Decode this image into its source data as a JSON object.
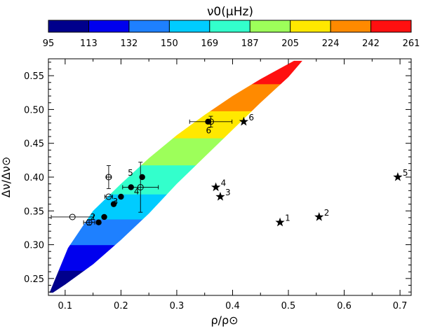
{
  "chart_data": {
    "type": "scatter",
    "xlabel": "ρ/ρ⊙",
    "ylabel": "Δν/Δν⊙",
    "xlim": [
      0.07,
      0.72
    ],
    "ylim": [
      0.225,
      0.575
    ],
    "xticks": [
      0.1,
      0.2,
      0.3,
      0.4,
      0.5,
      0.6,
      0.7
    ],
    "xtick_labels": [
      "0.1",
      "0.2",
      "0.3",
      "0.4",
      "0.5",
      "0.6",
      "0.7"
    ],
    "yticks": [
      0.25,
      0.3,
      0.35,
      0.4,
      0.45,
      0.5,
      0.55
    ],
    "ytick_labels": [
      "0.25",
      "0.30",
      "0.35",
      "0.40",
      "0.45",
      "0.50",
      "0.55"
    ],
    "colorbar": {
      "title": "ν0(μHz)",
      "tick_labels": [
        "95",
        "113",
        "132",
        "150",
        "169",
        "187",
        "205",
        "224",
        "242",
        "261"
      ],
      "colors": [
        "#00008c",
        "#0000ee",
        "#1e80ff",
        "#00ccff",
        "#33ffcc",
        "#9dff5a",
        "#ffe800",
        "#ff8a00",
        "#ff1010"
      ]
    },
    "band": {
      "bins": [
        {
          "color": "#00008c",
          "ys": [
            0.225,
            0.262
          ]
        },
        {
          "color": "#0000ee",
          "ys": [
            0.262,
            0.3
          ]
        },
        {
          "color": "#1e80ff",
          "ys": [
            0.3,
            0.338
          ]
        },
        {
          "color": "#00ccff",
          "ys": [
            0.338,
            0.375
          ]
        },
        {
          "color": "#33ffcc",
          "ys": [
            0.375,
            0.418
          ]
        },
        {
          "color": "#9dff5a",
          "ys": [
            0.418,
            0.458
          ]
        },
        {
          "color": "#ffe800",
          "ys": [
            0.458,
            0.498
          ]
        },
        {
          "color": "#ff8a00",
          "ys": [
            0.498,
            0.538
          ]
        },
        {
          "color": "#ff1010",
          "ys": [
            0.538,
            0.575
          ]
        }
      ]
    },
    "series": [
      {
        "name": "stars",
        "marker": "star",
        "points": [
          {
            "x": 0.485,
            "y": 0.333,
            "label": "1"
          },
          {
            "x": 0.555,
            "y": 0.341,
            "label": "2"
          },
          {
            "x": 0.378,
            "y": 0.371,
            "label": "3"
          },
          {
            "x": 0.37,
            "y": 0.385,
            "label": "4"
          },
          {
            "x": 0.696,
            "y": 0.4,
            "label": "5"
          },
          {
            "x": 0.42,
            "y": 0.482,
            "label": "6"
          }
        ]
      },
      {
        "name": "filled circles",
        "marker": "filled-circle",
        "points": [
          {
            "x": 0.16,
            "y": 0.333
          },
          {
            "x": 0.17,
            "y": 0.341
          },
          {
            "x": 0.187,
            "y": 0.36
          },
          {
            "x": 0.2,
            "y": 0.371
          },
          {
            "x": 0.218,
            "y": 0.385
          },
          {
            "x": 0.238,
            "y": 0.4
          },
          {
            "x": 0.356,
            "y": 0.482
          }
        ]
      },
      {
        "name": "open circles with error bars",
        "marker": "open-circle",
        "points": [
          {
            "x": 0.143,
            "y": 0.333,
            "xerr": 0.01,
            "yerr": 0.004
          },
          {
            "x": 0.113,
            "y": 0.341,
            "xerr": 0.038,
            "yerr": 0.0
          },
          {
            "x": 0.178,
            "y": 0.371,
            "xerr": 0.007,
            "yerr": 0.0
          },
          {
            "x": 0.235,
            "y": 0.385,
            "xerr": 0.032,
            "yerr": 0.037
          },
          {
            "x": 0.178,
            "y": 0.4,
            "xerr": 0.004,
            "yerr": 0.017
          },
          {
            "x": 0.361,
            "y": 0.482,
            "xerr": 0.038,
            "yerr": 0.008
          }
        ]
      },
      {
        "name": "point labels near circles",
        "marker": "none",
        "points": [
          {
            "x": 0.15,
            "y": 0.341,
            "label": "2"
          },
          {
            "x": 0.19,
            "y": 0.364,
            "label": "3"
          },
          {
            "x": 0.228,
            "y": 0.379,
            "label": "4"
          },
          {
            "x": 0.217,
            "y": 0.406,
            "label": "5"
          },
          {
            "x": 0.357,
            "y": 0.469,
            "label": "6"
          }
        ]
      }
    ]
  }
}
